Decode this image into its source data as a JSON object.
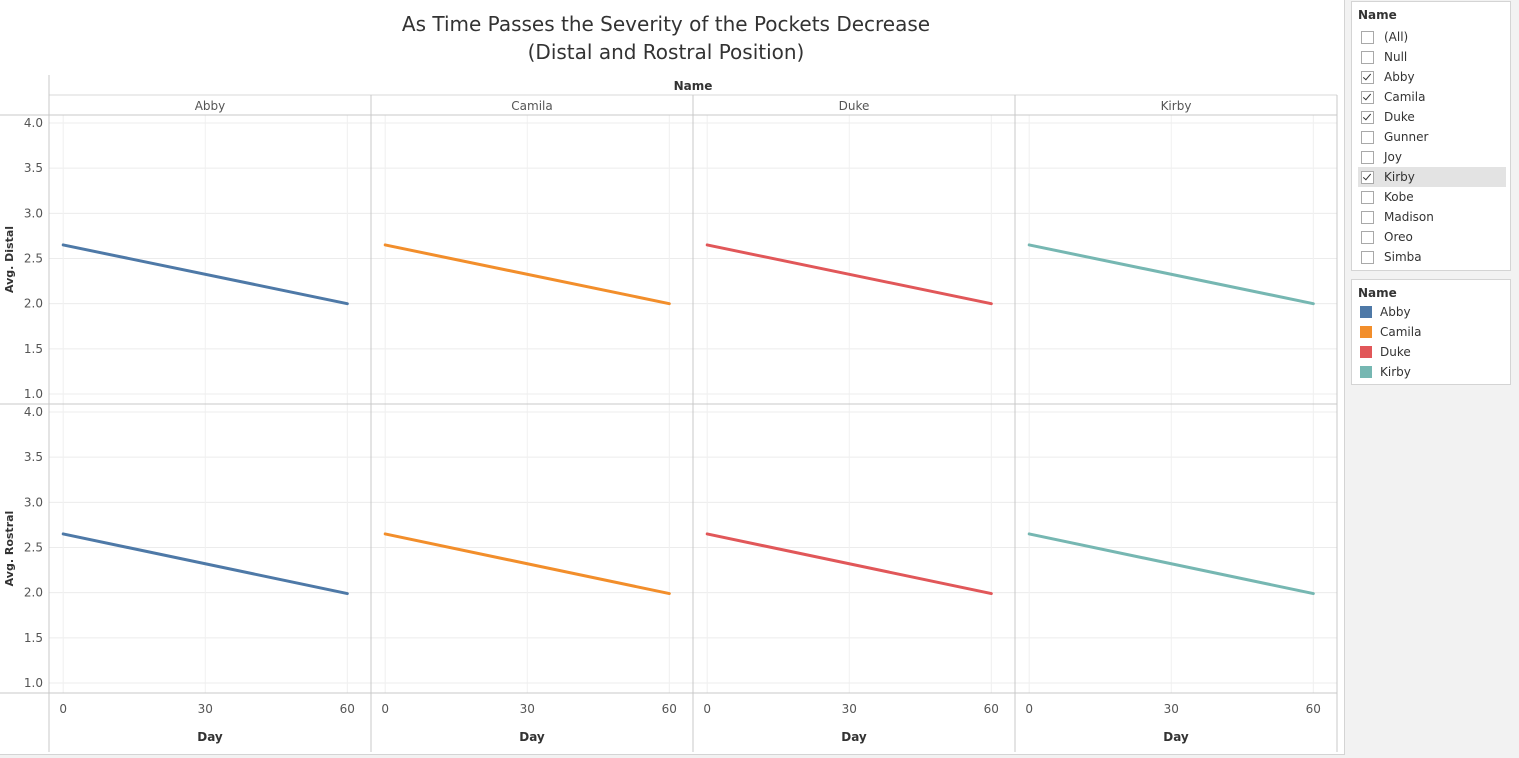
{
  "title": {
    "line1": "As Time Passes the Severity of the Pockets Decrease",
    "line2": "(Distal and Rostral Position)"
  },
  "colors": {
    "Abby": "#4e79a7",
    "Camila": "#f28e2b",
    "Duke": "#e15759",
    "Kirby": "#76b7b2"
  },
  "filter": {
    "title": "Name",
    "items": [
      {
        "label": "(All)",
        "checked": false
      },
      {
        "label": "Null",
        "checked": false
      },
      {
        "label": "Abby",
        "checked": true
      },
      {
        "label": "Camila",
        "checked": true
      },
      {
        "label": "Duke",
        "checked": true
      },
      {
        "label": "Gunner",
        "checked": false
      },
      {
        "label": "Joy",
        "checked": false
      },
      {
        "label": "Kirby",
        "checked": true,
        "highlighted": true
      },
      {
        "label": "Kobe",
        "checked": false
      },
      {
        "label": "Madison",
        "checked": false
      },
      {
        "label": "Oreo",
        "checked": false
      },
      {
        "label": "Simba",
        "checked": false
      }
    ]
  },
  "legend": {
    "title": "Name",
    "items": [
      {
        "label": "Abby",
        "color": "#4e79a7"
      },
      {
        "label": "Camila",
        "color": "#f28e2b"
      },
      {
        "label": "Duke",
        "color": "#e15759"
      },
      {
        "label": "Kirby",
        "color": "#76b7b2"
      }
    ]
  },
  "chart_data": {
    "type": "line",
    "title": "As Time Passes the Severity of the Pockets Decrease\n(Distal and Rostral Position)",
    "column_header": "Name",
    "columns": [
      "Abby",
      "Camila",
      "Duke",
      "Kirby"
    ],
    "xlabel": "Day",
    "xticks": [
      0,
      30,
      60
    ],
    "xlim": [
      -3,
      65
    ],
    "yticks": [
      "4.0",
      "3.5",
      "3.0",
      "2.5",
      "2.0",
      "1.5",
      "1.0"
    ],
    "rows": [
      {
        "ylabel": "Avg. Distal",
        "ylim": [
          1.0,
          4.0
        ],
        "series": [
          {
            "name": "Abby",
            "x": [
              0,
              60
            ],
            "y": [
              2.65,
              2.0
            ]
          },
          {
            "name": "Camila",
            "x": [
              0,
              60
            ],
            "y": [
              2.65,
              2.0
            ]
          },
          {
            "name": "Duke",
            "x": [
              0,
              60
            ],
            "y": [
              2.65,
              2.0
            ]
          },
          {
            "name": "Kirby",
            "x": [
              0,
              60
            ],
            "y": [
              2.65,
              2.0
            ]
          }
        ]
      },
      {
        "ylabel": "Avg. Rostral",
        "ylim": [
          1.0,
          4.0
        ],
        "series": [
          {
            "name": "Abby",
            "x": [
              0,
              60
            ],
            "y": [
              2.65,
              1.99
            ]
          },
          {
            "name": "Camila",
            "x": [
              0,
              60
            ],
            "y": [
              2.65,
              1.99
            ]
          },
          {
            "name": "Duke",
            "x": [
              0,
              60
            ],
            "y": [
              2.65,
              1.99
            ]
          },
          {
            "name": "Kirby",
            "x": [
              0,
              60
            ],
            "y": [
              2.65,
              1.99
            ]
          }
        ]
      }
    ],
    "grid": true,
    "legend": "right"
  }
}
